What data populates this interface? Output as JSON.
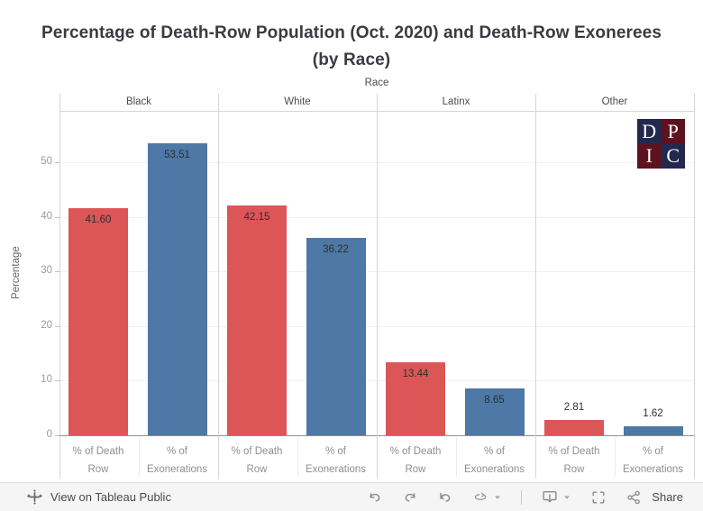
{
  "header": {
    "title_line1": "Percentage of Death-Row Population (Oct. 2020) and Death-Row Exonerees",
    "title_line2": "(by Race)"
  },
  "chart_data": {
    "type": "bar",
    "title": "Percentage of Death-Row Population (Oct. 2020) and Death-Row Exonerees (by Race)",
    "facet_field": "Race",
    "categories": [
      "Black",
      "White",
      "Latinx",
      "Other"
    ],
    "series": [
      {
        "name": "% of Death Row",
        "axis_label_lines": [
          "% of Death",
          "Row"
        ],
        "color": "#dc5657",
        "values": [
          41.6,
          42.15,
          13.44,
          2.81
        ],
        "labels": [
          "41.60",
          "42.15",
          "13.44",
          "2.81"
        ]
      },
      {
        "name": "% of Exonerations",
        "axis_label_lines": [
          "% of",
          "Exonerations"
        ],
        "color": "#4e78a5",
        "values": [
          53.51,
          36.22,
          8.65,
          1.62
        ],
        "labels": [
          "53.51",
          "36.22",
          "8.65",
          "1.62"
        ]
      }
    ],
    "ylabel": "Percentage",
    "yticks": [
      0,
      10,
      20,
      30,
      40,
      50
    ],
    "ylim": [
      0,
      59.5
    ],
    "grid": true,
    "legend": "none"
  },
  "logo": {
    "letters": [
      "D",
      "P",
      "I",
      "C"
    ],
    "navy": "#23284f",
    "maroon": "#5e1220"
  },
  "toolbar": {
    "view_label": "View on Tableau Public",
    "share_label": "Share",
    "icons": [
      "tableau-logo",
      "undo",
      "redo",
      "revert",
      "refresh",
      "dropdown-caret",
      "download",
      "dropdown-caret",
      "fullscreen",
      "share"
    ]
  },
  "colors": {
    "bar_red": "#dc5657",
    "bar_blue": "#4e78a5",
    "title_text": "#3a3a42",
    "gridline": "#f0f0f0",
    "panel_border": "#d6d6d6",
    "toolbar_bg": "#f5f5f5"
  }
}
